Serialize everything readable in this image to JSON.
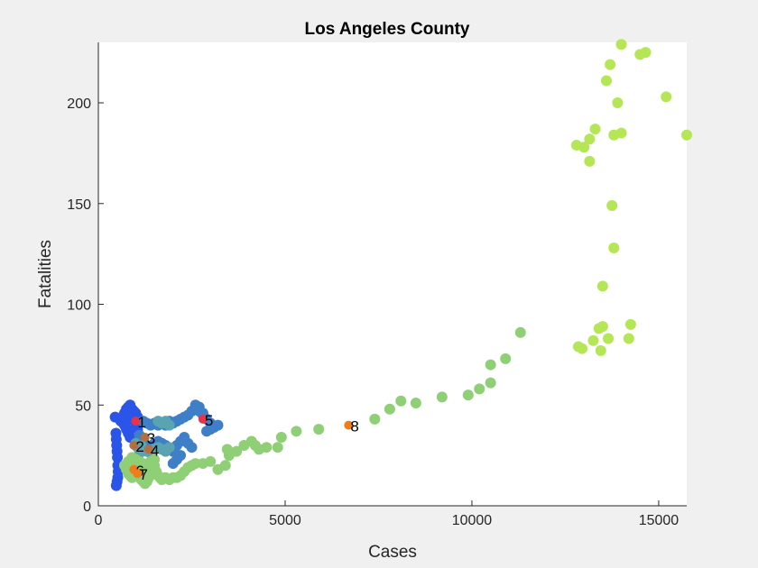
{
  "chart_data": {
    "type": "scatter",
    "title": "Los Angeles County",
    "xlabel": "Cases",
    "ylabel": "Fatalities",
    "xlim": [
      0,
      15750
    ],
    "ylim": [
      0,
      230
    ],
    "xticks": [
      0,
      5000,
      10000,
      15000
    ],
    "xtick_labels": [
      "0",
      "5000",
      "10000",
      "15000"
    ],
    "yticks": [
      0,
      50,
      100,
      150,
      200
    ],
    "ytick_labels": [
      "0",
      "50",
      "100",
      "150",
      "200"
    ],
    "grid": false,
    "series": [
      {
        "name": "blue",
        "color": "#2a55e8",
        "points": [
          [
            450,
            44
          ],
          [
            470,
            36
          ],
          [
            480,
            33
          ],
          [
            490,
            30
          ],
          [
            500,
            27
          ],
          [
            510,
            24
          ],
          [
            520,
            20
          ],
          [
            530,
            17
          ],
          [
            520,
            14
          ],
          [
            500,
            12
          ],
          [
            480,
            10
          ],
          [
            600,
            42
          ],
          [
            650,
            44
          ],
          [
            700,
            46
          ],
          [
            750,
            48
          ],
          [
            800,
            49
          ],
          [
            850,
            50
          ],
          [
            900,
            48
          ],
          [
            950,
            47
          ],
          [
            1000,
            46
          ],
          [
            1050,
            44
          ],
          [
            1100,
            42
          ],
          [
            700,
            40
          ],
          [
            750,
            38
          ],
          [
            800,
            36
          ],
          [
            850,
            34
          ],
          [
            900,
            44
          ],
          [
            950,
            42
          ],
          [
            850,
            46
          ],
          [
            1000,
            40
          ],
          [
            1050,
            38
          ],
          [
            750,
            42
          ],
          [
            800,
            44
          ]
        ]
      },
      {
        "name": "steel-blue",
        "color": "#3f7fc8",
        "points": [
          [
            1200,
            42
          ],
          [
            1300,
            41
          ],
          [
            1400,
            40
          ],
          [
            1500,
            41
          ],
          [
            1600,
            40
          ],
          [
            1700,
            41
          ],
          [
            1800,
            40
          ],
          [
            1900,
            42
          ],
          [
            2000,
            41
          ],
          [
            2100,
            42
          ],
          [
            2200,
            43
          ],
          [
            2300,
            44
          ],
          [
            2400,
            45
          ],
          [
            2500,
            47
          ],
          [
            2600,
            48
          ],
          [
            2700,
            47
          ],
          [
            2800,
            45
          ],
          [
            2900,
            43
          ],
          [
            3000,
            41
          ],
          [
            3100,
            39
          ],
          [
            3200,
            40
          ],
          [
            3000,
            38
          ],
          [
            2900,
            37
          ],
          [
            1300,
            30
          ],
          [
            1400,
            29
          ],
          [
            1500,
            31
          ],
          [
            1600,
            32
          ],
          [
            1700,
            31
          ],
          [
            1800,
            30
          ],
          [
            1900,
            28
          ],
          [
            2000,
            27
          ],
          [
            2100,
            30
          ],
          [
            2200,
            32
          ],
          [
            2300,
            34
          ],
          [
            2400,
            31
          ],
          [
            2500,
            29
          ],
          [
            2200,
            25
          ],
          [
            2100,
            23
          ],
          [
            2000,
            21
          ],
          [
            1200,
            33
          ],
          [
            1100,
            35
          ],
          [
            2600,
            50
          ],
          [
            2700,
            49
          ],
          [
            2800,
            46
          ]
        ]
      },
      {
        "name": "teal",
        "color": "#5aa3b0",
        "points": [
          [
            1100,
            26
          ],
          [
            1200,
            28
          ],
          [
            1300,
            27
          ],
          [
            1400,
            26
          ],
          [
            1500,
            28
          ],
          [
            1600,
            29
          ],
          [
            1700,
            28
          ],
          [
            1800,
            27
          ],
          [
            1900,
            29
          ],
          [
            1000,
            31
          ],
          [
            1050,
            29
          ],
          [
            1150,
            30
          ],
          [
            1600,
            42
          ],
          [
            1700,
            41
          ],
          [
            1800,
            42
          ],
          [
            1900,
            40
          ]
        ]
      },
      {
        "name": "light-green",
        "color": "#8fcf75",
        "points": [
          [
            700,
            20
          ],
          [
            750,
            18
          ],
          [
            800,
            16
          ],
          [
            850,
            15
          ],
          [
            900,
            14
          ],
          [
            950,
            16
          ],
          [
            1000,
            17
          ],
          [
            1050,
            15
          ],
          [
            1100,
            14
          ],
          [
            1150,
            13
          ],
          [
            1200,
            12
          ],
          [
            1250,
            11
          ],
          [
            1300,
            12
          ],
          [
            1350,
            14
          ],
          [
            1400,
            16
          ],
          [
            1450,
            18
          ],
          [
            1500,
            20
          ],
          [
            1550,
            17
          ],
          [
            1600,
            15
          ],
          [
            1650,
            14
          ],
          [
            1700,
            13
          ],
          [
            1800,
            14
          ],
          [
            1900,
            13
          ],
          [
            2000,
            14
          ],
          [
            2100,
            14
          ],
          [
            2200,
            15
          ],
          [
            2300,
            17
          ],
          [
            2400,
            19
          ],
          [
            2500,
            20
          ],
          [
            2600,
            21
          ],
          [
            2800,
            21
          ],
          [
            3000,
            22
          ],
          [
            3200,
            18
          ],
          [
            3400,
            20
          ],
          [
            3500,
            25
          ],
          [
            3450,
            28
          ],
          [
            3700,
            27
          ],
          [
            3900,
            30
          ],
          [
            4100,
            32
          ],
          [
            4200,
            30
          ],
          [
            4300,
            28
          ],
          [
            4500,
            29
          ],
          [
            4800,
            29
          ],
          [
            4900,
            34
          ],
          [
            5300,
            37
          ],
          [
            5900,
            38
          ],
          [
            7400,
            43
          ],
          [
            7800,
            48
          ],
          [
            8100,
            52
          ],
          [
            8500,
            51
          ],
          [
            9200,
            54
          ],
          [
            9900,
            55
          ],
          [
            10200,
            58
          ],
          [
            10500,
            61
          ],
          [
            10500,
            70
          ],
          [
            10900,
            73
          ],
          [
            11300,
            86
          ],
          [
            800,
            22
          ],
          [
            900,
            24
          ],
          [
            1000,
            23
          ],
          [
            1100,
            22
          ],
          [
            1200,
            21
          ],
          [
            1300,
            20
          ],
          [
            1400,
            22
          ],
          [
            1500,
            23
          ],
          [
            1000,
            18
          ],
          [
            900,
            19
          ],
          [
            1150,
            17
          ]
        ]
      },
      {
        "name": "yellow-green",
        "color": "#b4e656",
        "points": [
          [
            14000,
            229
          ],
          [
            14500,
            224
          ],
          [
            14650,
            225
          ],
          [
            13700,
            219
          ],
          [
            13600,
            211
          ],
          [
            13900,
            200
          ],
          [
            15200,
            203
          ],
          [
            15750,
            184
          ],
          [
            13300,
            187
          ],
          [
            13800,
            184
          ],
          [
            14000,
            185
          ],
          [
            13150,
            182
          ],
          [
            12800,
            179
          ],
          [
            13000,
            178
          ],
          [
            13150,
            171
          ],
          [
            13750,
            149
          ],
          [
            13800,
            128
          ],
          [
            13500,
            109
          ],
          [
            13400,
            88
          ],
          [
            13500,
            89
          ],
          [
            14250,
            90
          ],
          [
            13250,
            82
          ],
          [
            13650,
            83
          ],
          [
            14200,
            83
          ],
          [
            12850,
            79
          ],
          [
            12950,
            78
          ],
          [
            13450,
            77
          ]
        ]
      }
    ],
    "highlights": [
      {
        "label": "1",
        "x": 1000,
        "y": 42,
        "color": "#e8334a"
      },
      {
        "label": "2",
        "x": 950,
        "y": 30,
        "color": "#b07040"
      },
      {
        "label": "3",
        "x": 1250,
        "y": 34,
        "color": "#b07040"
      },
      {
        "label": "4",
        "x": 1350,
        "y": 28,
        "color": "#b07040"
      },
      {
        "label": "5",
        "x": 2800,
        "y": 43,
        "color": "#e8334a"
      },
      {
        "label": "6",
        "x": 950,
        "y": 18,
        "color": "#f07c1a"
      },
      {
        "label": "7",
        "x": 1050,
        "y": 16,
        "color": "#f07c1a"
      },
      {
        "label": "8",
        "x": 6700,
        "y": 40,
        "color": "#f07c1a"
      }
    ]
  }
}
